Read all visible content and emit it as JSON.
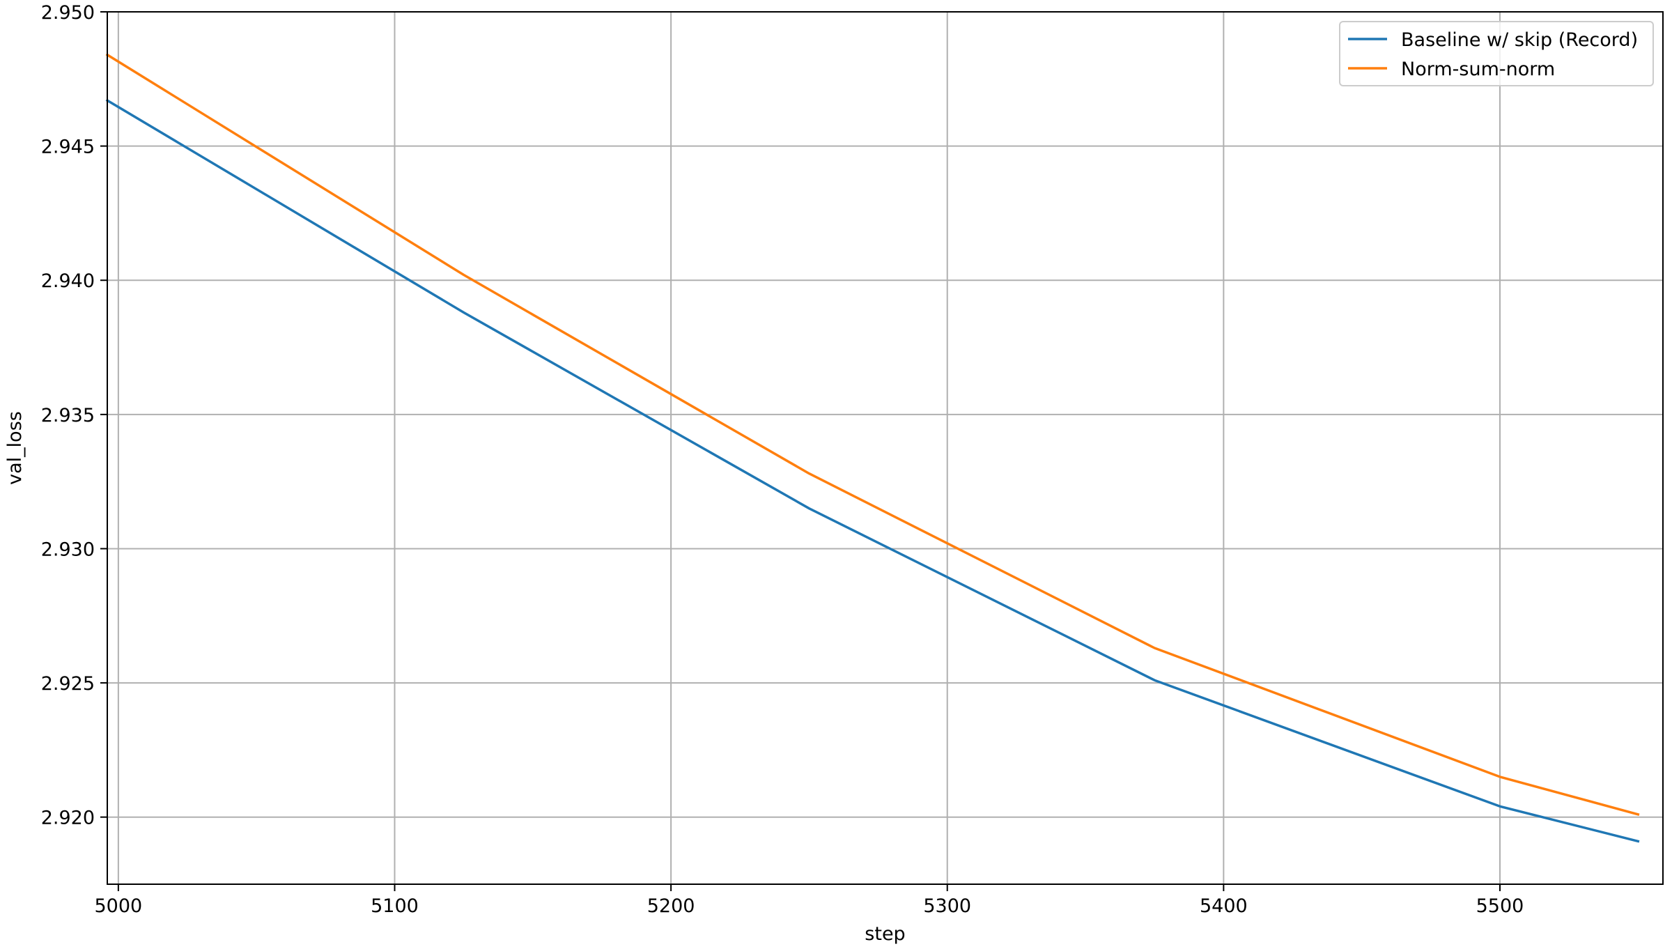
{
  "chart_data": {
    "type": "line",
    "title": "",
    "xlabel": "step",
    "ylabel": "val_loss",
    "xlim": [
      4996,
      5559
    ],
    "ylim": [
      2.9175,
      2.95
    ],
    "x_ticks": [
      5000,
      5100,
      5200,
      5300,
      5400,
      5500
    ],
    "x_tick_labels": [
      "5000",
      "5100",
      "5200",
      "5300",
      "5400",
      "5500"
    ],
    "y_ticks": [
      2.92,
      2.925,
      2.93,
      2.935,
      2.94,
      2.945,
      2.95
    ],
    "y_tick_labels": [
      "2.920",
      "2.925",
      "2.930",
      "2.935",
      "2.940",
      "2.945",
      "2.950"
    ],
    "grid": true,
    "legend_position": "top-right",
    "series": [
      {
        "name": "Baseline w/ skip (Record)",
        "color": "#1f77b4",
        "x": [
          4996,
          5125,
          5250,
          5375,
          5500,
          5550
        ],
        "y": [
          2.9467,
          2.9388,
          2.9315,
          2.9251,
          2.9204,
          2.9191
        ]
      },
      {
        "name": "Norm-sum-norm",
        "color": "#ff7f0e",
        "x": [
          4996,
          5125,
          5250,
          5375,
          5500,
          5550
        ],
        "y": [
          2.9484,
          2.9402,
          2.9328,
          2.9263,
          2.9215,
          2.9201
        ]
      }
    ]
  }
}
